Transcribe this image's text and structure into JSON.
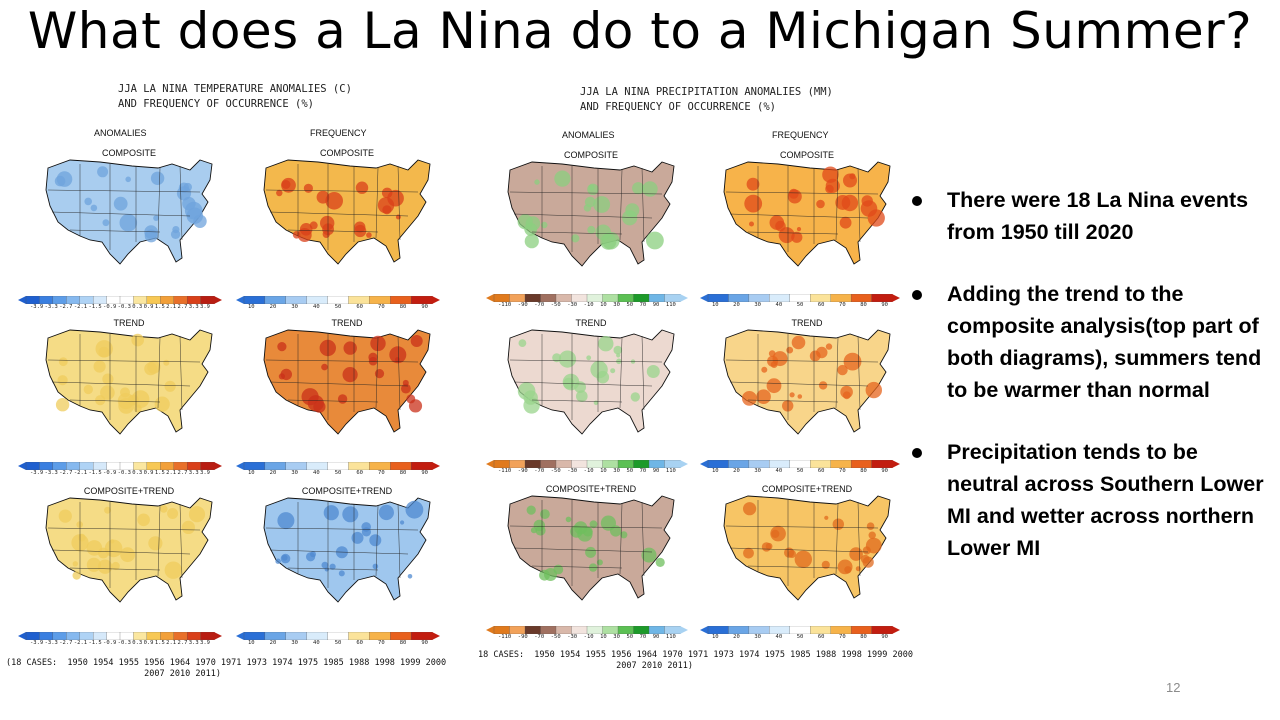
{
  "slide": {
    "title": "What does a La Nina do to a Michigan Summer?",
    "page_number": "12"
  },
  "temperature_panel": {
    "title": "JJA LA NINA TEMPERATURE ANOMALIES (C)\nAND FREQUENCY OF OCCURRENCE (%)",
    "col_anomalies": "ANOMALIES",
    "col_frequency": "FREQUENCY",
    "maps": [
      {
        "label": "COMPOSITE",
        "fill": "#a9cdef",
        "accent": "#6fa3dc"
      },
      {
        "label": "COMPOSITE",
        "fill": "#f3b84c",
        "accent": "#d9401a"
      },
      {
        "label": "TREND",
        "fill": "#f5dc86",
        "accent": "#efcc5c"
      },
      {
        "label": "TREND",
        "fill": "#e88a3a",
        "accent": "#c9301a"
      },
      {
        "label": "COMPOSITE+TREND",
        "fill": "#f5dc86",
        "accent": "#efcc5c"
      },
      {
        "label": "COMPOSITE+TREND",
        "fill": "#9fc7ee",
        "accent": "#4f89d0"
      }
    ],
    "anomaly_ticks": [
      "-3.9",
      "-3.3",
      "-2.7",
      "-2.1",
      "-1.5",
      "-0.9",
      "-0.3",
      "0.3",
      "0.9",
      "1.5",
      "2.1",
      "2.7",
      "3.3",
      "3.9"
    ],
    "frequency_ticks": [
      "10",
      "20",
      "30",
      "40",
      "50",
      "60",
      "70",
      "80",
      "90"
    ],
    "cases": "(18 CASES:  1950 1954 1955 1956 1964 1970 1971 1973 1974 1975 1985 1988 1998 1999 2000\n                           2007 2010 2011)"
  },
  "precipitation_panel": {
    "title": "JJA LA NINA PRECIPITATION ANOMALIES (MM)\nAND FREQUENCY OF OCCURRENCE (%)",
    "col_anomalies": "ANOMALIES",
    "col_frequency": "FREQUENCY",
    "maps": [
      {
        "label": "COMPOSITE",
        "fill": "#c9a99a",
        "accent": "#8bcf7f"
      },
      {
        "label": "COMPOSITE",
        "fill": "#f7b34a",
        "accent": "#e04a1a"
      },
      {
        "label": "TREND",
        "fill": "#ecd9d0",
        "accent": "#9ad48c"
      },
      {
        "label": "TREND",
        "fill": "#f8d58a",
        "accent": "#e5641d"
      },
      {
        "label": "COMPOSITE+TREND",
        "fill": "#c9a99a",
        "accent": "#6fbf5e"
      },
      {
        "label": "COMPOSITE+TREND",
        "fill": "#f7c565",
        "accent": "#e06a1d"
      }
    ],
    "anomaly_ticks": [
      "-110",
      "-90",
      "-70",
      "-50",
      "-30",
      "-10",
      "10",
      "30",
      "50",
      "70",
      "90",
      "110"
    ],
    "frequency_ticks": [
      "10",
      "20",
      "30",
      "40",
      "50",
      "60",
      "70",
      "80",
      "90"
    ],
    "cases": "18 CASES:  1950 1954 1955 1956 1964 1970 1971 1973 1974 1975 1985 1988 1998 1999 2000\n                           2007 2010 2011)"
  },
  "bullets": [
    "There were 18 La Nina events from 1950 till 2020",
    "Adding the trend to the composite analysis(top part of both diagrams), summers tend to be warmer than normal",
    "Precipitation tends to be neutral across Southern Lower MI and wetter across northern Lower MI"
  ],
  "colors": {
    "temp_scale": [
      "#1f5fcf",
      "#3a7fe0",
      "#5d9de8",
      "#86b9ef",
      "#afd3f5",
      "#d6e9fa",
      "#ffffff",
      "#ffffff",
      "#fbe7a0",
      "#f7c855",
      "#f2a03a",
      "#e8702a",
      "#d9401a",
      "#b81d12"
    ],
    "freq_scale": [
      "#2a6fd6",
      "#6aa5e6",
      "#a8ccf2",
      "#d9ecfb",
      "#ffffff",
      "#fbe39a",
      "#f6b34a",
      "#e8601d",
      "#c21d10"
    ],
    "precip_scale": [
      "#e07a1d",
      "#f2a25a",
      "#6a3a2a",
      "#a07060",
      "#d9b8aa",
      "#f2e4de",
      "#e0f2dc",
      "#aee0a2",
      "#5cc054",
      "#1d9a2a",
      "#6fb6e6",
      "#a8d2f2"
    ]
  }
}
